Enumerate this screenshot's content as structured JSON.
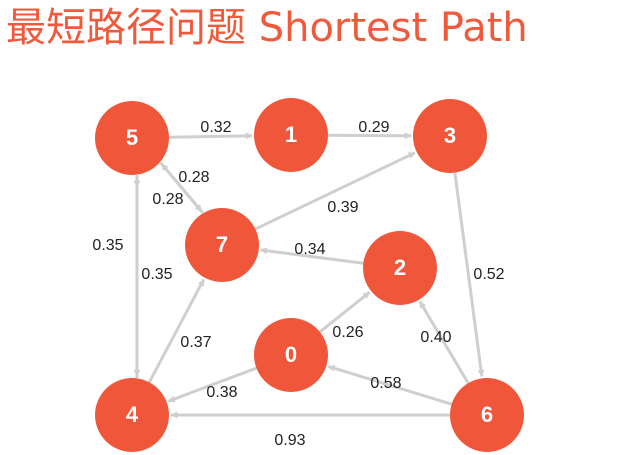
{
  "title": "最短路径问题 Shortest Path",
  "colors": {
    "title": "#f05a3c",
    "node_fill": "#f0573a",
    "edge": "#cfcfcf",
    "edge_label": "#222222"
  },
  "graph": {
    "nodes": [
      "5",
      "1",
      "3",
      "7",
      "2",
      "0",
      "4",
      "6"
    ],
    "edges": [
      {
        "from": "5",
        "to": "1",
        "weight": "0.32"
      },
      {
        "from": "1",
        "to": "3",
        "weight": "0.29"
      },
      {
        "from": "5",
        "to": "7",
        "weight": "0.28"
      },
      {
        "from": "7",
        "to": "5",
        "weight": "0.28"
      },
      {
        "from": "7",
        "to": "3",
        "weight": "0.39"
      },
      {
        "from": "5",
        "to": "4",
        "weight": "0.35"
      },
      {
        "from": "4",
        "to": "5",
        "weight": "0.35"
      },
      {
        "from": "2",
        "to": "7",
        "weight": "0.34"
      },
      {
        "from": "3",
        "to": "6",
        "weight": "0.52"
      },
      {
        "from": "4",
        "to": "7",
        "weight": "0.37"
      },
      {
        "from": "0",
        "to": "2",
        "weight": "0.26"
      },
      {
        "from": "6",
        "to": "2",
        "weight": "0.40"
      },
      {
        "from": "0",
        "to": "4",
        "weight": "0.38"
      },
      {
        "from": "6",
        "to": "0",
        "weight": "0.58"
      },
      {
        "from": "6",
        "to": "4",
        "weight": "0.93"
      }
    ]
  }
}
